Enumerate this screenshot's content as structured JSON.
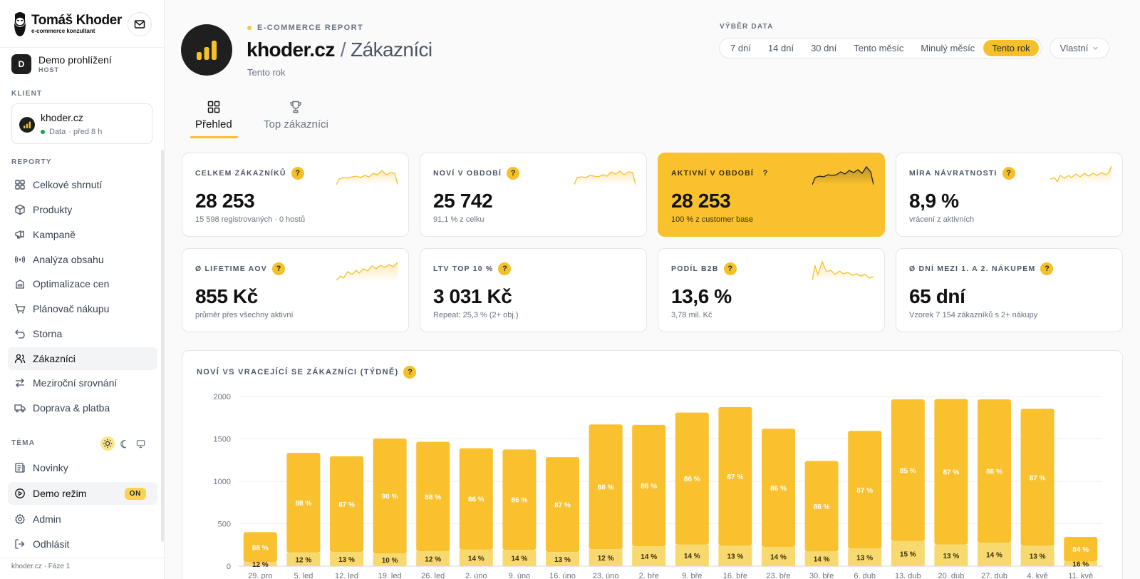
{
  "brand": {
    "name": "Tomáš Khoder",
    "tagline": "e-commerce konzultant"
  },
  "user": {
    "initial": "D",
    "name": "Demo prohlížení",
    "role": "HOST"
  },
  "client": {
    "section_label": "KLIENT",
    "name": "khoder.cz",
    "status": "Data",
    "updated": "· před 8 h"
  },
  "nav": {
    "section_label": "REPORTY",
    "items": [
      {
        "label": "Celkové shrnutí",
        "icon": "grid-icon"
      },
      {
        "label": "Produkty",
        "icon": "box-icon"
      },
      {
        "label": "Kampaně",
        "icon": "megaphone-icon"
      },
      {
        "label": "Analýza obsahu",
        "icon": "broadcast-icon"
      },
      {
        "label": "Optimalizace cen",
        "icon": "building-icon"
      },
      {
        "label": "Plánovač nákupu",
        "icon": "cart-icon"
      },
      {
        "label": "Storna",
        "icon": "undo-icon"
      },
      {
        "label": "Zákazníci",
        "icon": "users-icon"
      },
      {
        "label": "Meziroční srovnání",
        "icon": "swap-icon"
      },
      {
        "label": "Doprava & platba",
        "icon": "truck-icon"
      }
    ]
  },
  "theme": {
    "section_label": "TÉMA"
  },
  "footer_nav": [
    {
      "label": "Novinky",
      "icon": "news-icon"
    },
    {
      "label": "Demo režim",
      "icon": "play-circle-icon",
      "badge": "ON"
    },
    {
      "label": "Admin",
      "icon": "gear-icon"
    },
    {
      "label": "Odhlásit",
      "icon": "logout-icon"
    }
  ],
  "sidebar_footer": "khoder.cz · Fáze 1",
  "header": {
    "eyebrow": "E-COMMERCE REPORT",
    "domain": "khoder.cz",
    "page": "Zákazníci",
    "period": "Tento rok",
    "date_label": "VÝBĚR DATA",
    "date_options": [
      "7 dní",
      "14 dní",
      "30 dní",
      "Tento měsíc",
      "Minulý měsíc",
      "Tento rok"
    ],
    "selected_option": "Tento rok",
    "custom_label": "Vlastní"
  },
  "tabs": [
    {
      "label": "Přehled",
      "icon": "grid-icon",
      "active": true
    },
    {
      "label": "Top zákazníci",
      "icon": "trophy-icon",
      "active": false
    }
  ],
  "kpis": [
    {
      "label": "CELKEM ZÁKAZNÍKŮ",
      "value": "28 253",
      "sub": "15 598 registrovaných · 0 hostů",
      "highlight": false
    },
    {
      "label": "NOVÍ V OBDOBÍ",
      "value": "25 742",
      "sub": "91,1 % z celku",
      "highlight": false
    },
    {
      "label": "AKTIVNÍ V OBDOBÍ",
      "value": "28 253",
      "sub": "100 % z customer base",
      "highlight": true
    },
    {
      "label": "MÍRA NÁVRATNOSTI",
      "value": "8,9 %",
      "sub": "vrácení z aktivních",
      "highlight": false
    },
    {
      "label": "Ø LIFETIME AOV",
      "value": "855 Kč",
      "sub": "průměr přes všechny aktivní",
      "highlight": false
    },
    {
      "label": "LTV TOP 10 %",
      "value": "3 031 Kč",
      "sub": "Repeat: 25,3 % (2+ obj.)",
      "highlight": false
    },
    {
      "label": "PODÍL B2B",
      "value": "13,6 %",
      "sub": "3,78 mil. Kč",
      "highlight": false
    },
    {
      "label": "Ø DNÍ MEZI 1. A 2. NÁKUPEM",
      "value": "65 dní",
      "sub": "Vzorek 7 154 zákazníků s 2+ nákupy",
      "highlight": false
    }
  ],
  "colors": {
    "accent": "#f5c029",
    "bar_new": "#f9c12e",
    "bar_returning": "#f7d970",
    "dark": "#1f1f1f"
  },
  "chart_data": {
    "type": "bar",
    "stacked": true,
    "title": "NOVÍ VS VRACEJÍCÍ SE ZÁKAZNÍCI (TÝDNĚ)",
    "ylim": [
      0,
      2000
    ],
    "yticks": [
      0,
      500,
      1000,
      1500,
      2000
    ],
    "grid": true,
    "categories": [
      "29. pro",
      "5. led",
      "12. led",
      "19. led",
      "26. led",
      "2. úno",
      "9. úno",
      "16. úno",
      "23. úno",
      "2. bře",
      "9. bře",
      "16. bře",
      "23. bře",
      "30. bře",
      "6. dub",
      "13. dub",
      "20. dub",
      "27. dub",
      "4. kvě",
      "11. kvě"
    ],
    "totals": [
      400,
      1335,
      1295,
      1505,
      1465,
      1390,
      1375,
      1285,
      1670,
      1665,
      1810,
      1875,
      1620,
      1240,
      1595,
      1965,
      1970,
      1965,
      1855,
      345
    ],
    "new_pct_labels": [
      "88 %",
      "88 %",
      "87 %",
      "90 %",
      "88 %",
      "86 %",
      "86 %",
      "87 %",
      "88 %",
      "86 %",
      "86 %",
      "87 %",
      "86 %",
      "86 %",
      "87 %",
      "85 %",
      "87 %",
      "86 %",
      "87 %",
      "84 %"
    ],
    "returning_pct_labels": [
      "12 %",
      "12 %",
      "13 %",
      "10 %",
      "12 %",
      "14 %",
      "14 %",
      "13 %",
      "12 %",
      "14 %",
      "14 %",
      "13 %",
      "14 %",
      "14 %",
      "13 %",
      "15 %",
      "13 %",
      "14 %",
      "13 %",
      "16 %"
    ],
    "returning_share": [
      0.12,
      0.12,
      0.13,
      0.1,
      0.12,
      0.14,
      0.14,
      0.13,
      0.12,
      0.14,
      0.14,
      0.13,
      0.14,
      0.14,
      0.13,
      0.15,
      0.13,
      0.14,
      0.13,
      0.16
    ]
  }
}
